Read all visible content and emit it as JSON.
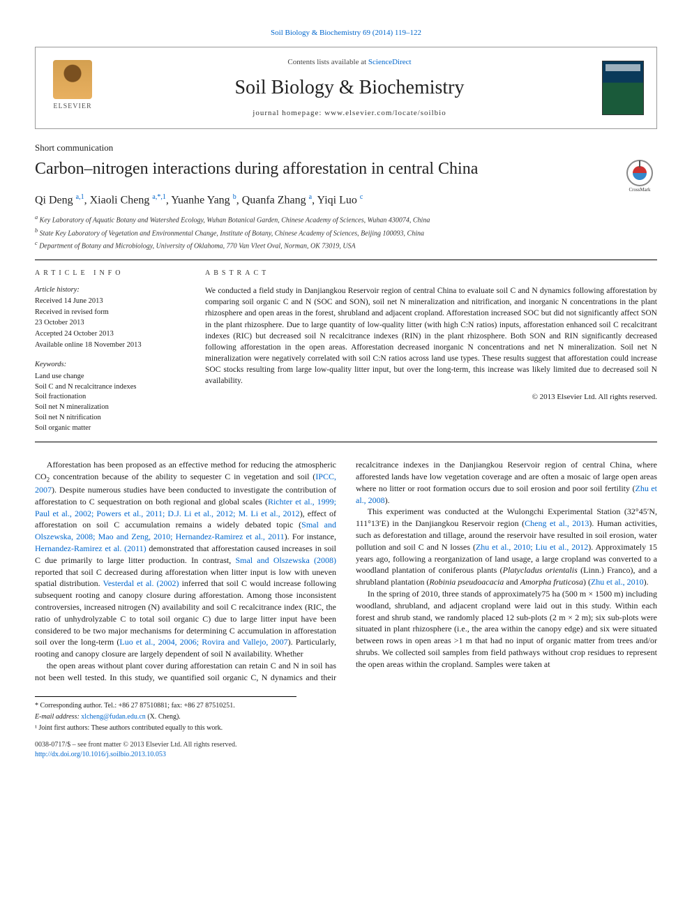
{
  "top_citation": "Soil Biology & Biochemistry 69 (2014) 119–122",
  "masthead": {
    "contents_prefix": "Contents lists available at ",
    "contents_link": "ScienceDirect",
    "journal": "Soil Biology & Biochemistry",
    "homepage_label": "journal homepage: ",
    "homepage_url": "www.elsevier.com/locate/soilbio",
    "publisher_word": "ELSEVIER"
  },
  "article": {
    "section_type": "Short communication",
    "title": "Carbon–nitrogen interactions during afforestation in central China",
    "authors_html": "Qi Deng <sup>a,1</sup>, Xiaoli Cheng <sup>a,*,1</sup>, Yuanhe Yang <sup>b</sup>, Quanfa Zhang <sup>a</sup>, Yiqi Luo <sup>c</sup>",
    "affiliations": [
      "a Key Laboratory of Aquatic Botany and Watershed Ecology, Wuhan Botanical Garden, Chinese Academy of Sciences, Wuhan 430074, China",
      "b State Key Laboratory of Vegetation and Environmental Change, Institute of Botany, Chinese Academy of Sciences, Beijing 100093, China",
      "c Department of Botany and Microbiology, University of Oklahoma, 770 Van Vleet Oval, Norman, OK 73019, USA"
    ]
  },
  "info": {
    "heading": "ARTICLE INFO",
    "history_label": "Article history:",
    "history": [
      "Received 14 June 2013",
      "Received in revised form",
      "23 October 2013",
      "Accepted 24 October 2013",
      "Available online 18 November 2013"
    ],
    "keywords_label": "Keywords:",
    "keywords": [
      "Land use change",
      "Soil C and N recalcitrance indexes",
      "Soil fractionation",
      "Soil net N mineralization",
      "Soil net N nitrification",
      "Soil organic matter"
    ]
  },
  "abstract": {
    "heading": "ABSTRACT",
    "text": "We conducted a field study in Danjiangkou Reservoir region of central China to evaluate soil C and N dynamics following afforestation by comparing soil organic C and N (SOC and SON), soil net N mineralization and nitrification, and inorganic N concentrations in the plant rhizosphere and open areas in the forest, shrubland and adjacent cropland. Afforestation increased SOC but did not significantly affect SON in the plant rhizosphere. Due to large quantity of low-quality litter (with high C:N ratios) inputs, afforestation enhanced soil C recalcitrant indexes (RIC) but decreased soil N recalcitrance indexes (RIN) in the plant rhizosphere. Both SON and RIN significantly decreased following afforestation in the open areas. Afforestation decreased inorganic N concentrations and net N mineralization. Soil net N mineralization were negatively correlated with soil C:N ratios across land use types. These results suggest that afforestation could increase SOC stocks resulting from large low-quality litter input, but over the long-term, this increase was likely limited due to decreased soil N availability.",
    "copyright": "© 2013 Elsevier Ltd. All rights reserved."
  },
  "body": {
    "p1": "Afforestation has been proposed as an effective method for reducing the atmospheric CO₂ concentration because of the ability to sequester C in vegetation and soil (IPCC, 2007). Despite numerous studies have been conducted to investigate the contribution of afforestation to C sequestration on both regional and global scales (Richter et al., 1999; Paul et al., 2002; Powers et al., 2011; D.J. Li et al., 2012; M. Li et al., 2012), effect of afforestation on soil C accumulation remains a widely debated topic (Smal and Olszewska, 2008; Mao and Zeng, 2010; Hernandez-Ramirez et al., 2011). For instance, Hernandez-Ramirez et al. (2011) demonstrated that afforestation caused increases in soil C due primarily to large litter production. In contrast, Smal and Olszewska (2008) reported that soil C decreased during afforestation when litter input is low with uneven spatial distribution. Vesterdal et al. (2002) inferred that soil C would increase following subsequent rooting and canopy closure during afforestation. Among those inconsistent controversies, increased nitrogen (N) availability and soil C recalcitrance index (RIC, the ratio of unhydrolyzable C to total soil organic C) due to large litter input have been considered to be two major mechanisms for determining C accumulation in afforestation soil over the long-term (Luo et al., 2004, 2006; Rovira and Vallejo, 2007). Particularly, rooting and canopy closure are largely dependent of soil N availability. Whether",
    "p2": "the open areas without plant cover during afforestation can retain C and N in soil has not been well tested. In this study, we quantified soil organic C, N dynamics and their recalcitrance indexes in the Danjiangkou Reservoir region of central China, where afforested lands have low vegetation coverage and are often a mosaic of large open areas where no litter or root formation occurs due to soil erosion and poor soil fertility (Zhu et al., 2008).",
    "p3": "This experiment was conducted at the Wulongchi Experimental Station (32°45′N, 111°13′E) in the Danjiangkou Reservoir region (Cheng et al., 2013). Human activities, such as deforestation and tillage, around the reservoir have resulted in soil erosion, water pollution and soil C and N losses (Zhu et al., 2010; Liu et al., 2012). Approximately 15 years ago, following a reorganization of land usage, a large cropland was converted to a woodland plantation of coniferous plants (Platycladus orientalis (Linn.) Franco), and a shrubland plantation (Robinia pseudoacacia and Amorpha fruticosa) (Zhu et al., 2010).",
    "p4": "In the spring of 2010, three stands of approximately75 ha (500 m × 1500 m) including woodland, shrubland, and adjacent cropland were laid out in this study. Within each forest and shrub stand, we randomly placed 12 sub-plots (2 m × 2 m); six sub-plots were situated in plant rhizosphere (i.e., the area within the canopy edge) and six were situated between rows in open areas >1 m that had no input of organic matter from trees and/or shrubs. We collected soil samples from field pathways without crop residues to represent the open areas within the cropland. Samples were taken at"
  },
  "footnotes": {
    "corr": "* Corresponding author. Tel.: +86 27 87510881; fax: +86 27 87510251.",
    "email_label": "E-mail address: ",
    "email": "xlcheng@fudan.edu.cn",
    "email_suffix": " (X. Cheng).",
    "joint": "¹ Joint first authors: These authors contributed equally to this work."
  },
  "bottom": {
    "issn_line": "0038-0717/$ – see front matter © 2013 Elsevier Ltd. All rights reserved.",
    "doi": "http://dx.doi.org/10.1016/j.soilbio.2013.10.053"
  },
  "crossmark_label": "CrossMark",
  "colors": {
    "link": "#0066cc",
    "text": "#1a1a1a",
    "rule": "#000000"
  }
}
